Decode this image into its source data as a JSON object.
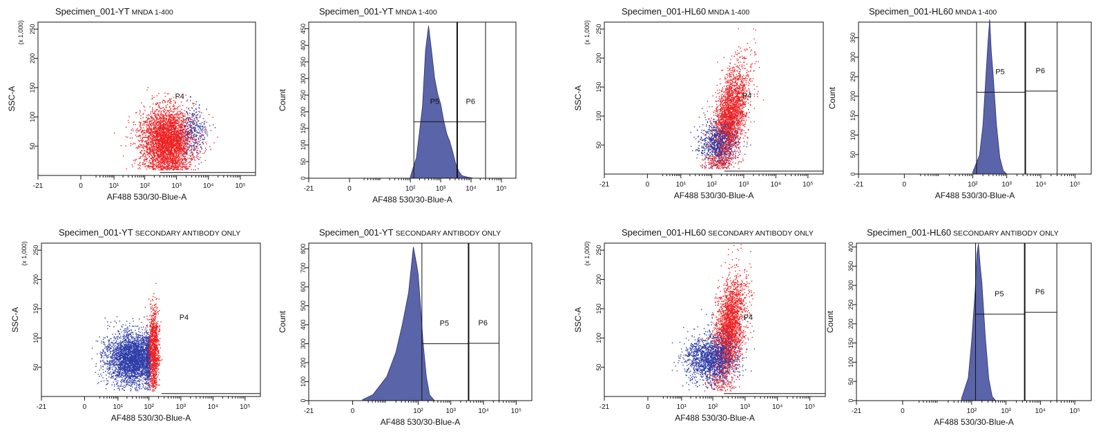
{
  "figure": {
    "colors": {
      "positive": "#ee2224",
      "negative": "#2e3ca8",
      "histogram_fill": "#5a64a8",
      "histogram_edge": "#2a2f7a"
    }
  },
  "chart_data": [
    {
      "type": "scatter",
      "title_main": "Specimen_001-YT",
      "title_sub": "MNDA 1-400",
      "xlabel": "AF488 530/30-Blue-A",
      "ylabel": "SSC-A",
      "y_multiplier": "(x 1,000)",
      "x_scale": "biexponential",
      "xlim": [
        -21,
        300000
      ],
      "ylim": [
        0,
        262
      ],
      "x_ticks": [
        "-21",
        "0",
        "10¹",
        "10²",
        "10³",
        "10⁴",
        "10⁵"
      ],
      "y_ticks": [
        "50",
        "100",
        "150",
        "200",
        "250"
      ],
      "gates": [
        {
          "name": "P4",
          "polygon": [
            [
              300,
              5
            ],
            [
              300000,
              5
            ],
            [
              300000,
              262
            ],
            [
              60,
              262
            ]
          ]
        }
      ],
      "populations": [
        {
          "name": "P4 (red)",
          "color": "#ee2224",
          "x_center": 500,
          "y_center": 60,
          "x_spread_decades": 0.42,
          "y_sd": 28,
          "events": 3800
        },
        {
          "name": "outside P4 (blue)",
          "color": "#2e3ca8",
          "x_center": 3500,
          "y_center": 75,
          "x_spread_decades": 0.2,
          "y_sd": 22,
          "events": 300
        }
      ]
    },
    {
      "type": "area",
      "title_main": "Specimen_001-YT",
      "title_sub": "MNDA 1-400",
      "xlabel": "AF488 530/30-Blue-A",
      "ylabel": "Count",
      "x_scale": "biexponential",
      "xlim": [
        -21,
        300000
      ],
      "ylim": [
        0,
        470
      ],
      "x_ticks": [
        "-21",
        "0",
        "10²",
        "10³",
        "10⁴",
        "10⁵"
      ],
      "y_ticks": [
        "0",
        "50",
        "100",
        "150",
        "200",
        "250",
        "300",
        "350",
        "400",
        "450"
      ],
      "histogram": {
        "log10_x": [
          2.0,
          2.2,
          2.4,
          2.5,
          2.6,
          2.7,
          2.8,
          2.9,
          3.0,
          3.1,
          3.2,
          3.3,
          3.4,
          3.5,
          3.6,
          3.7,
          3.9,
          4.1
        ],
        "count": [
          5,
          60,
          220,
          400,
          450,
          380,
          300,
          250,
          230,
          180,
          140,
          110,
          80,
          40,
          20,
          8,
          3,
          0
        ]
      },
      "gates": [
        {
          "name": "P5",
          "x_range": [
            130,
            3500
          ],
          "level": 170
        },
        {
          "name": "P6",
          "x_range": [
            3500,
            30000
          ],
          "level": 170
        }
      ]
    },
    {
      "type": "scatter",
      "title_main": "Specimen_001-HL60",
      "title_sub": "MNDA 1-400",
      "xlabel": "AF488 530/30-Blue-A",
      "ylabel": "SSC-A",
      "y_multiplier": "(x 1,000)",
      "x_scale": "biexponential",
      "xlim": [
        -21,
        300000
      ],
      "ylim": [
        0,
        262
      ],
      "x_ticks": [
        "-21",
        "0",
        "10¹",
        "10²",
        "10³",
        "10⁴",
        "10⁵"
      ],
      "y_ticks": [
        "50",
        "100",
        "150",
        "200",
        "250"
      ],
      "gates": [
        {
          "name": "P4",
          "polygon": [
            [
              250,
              5
            ],
            [
              300000,
              5
            ],
            [
              300000,
              262
            ],
            [
              700,
              262
            ]
          ]
        }
      ],
      "populations": [
        {
          "name": "P4 (red)",
          "color": "#ee2224",
          "x_center": 350,
          "y_center": 95,
          "x_spread_decades": 0.28,
          "y_sd": 38,
          "events": 3000,
          "correlated": true
        },
        {
          "name": "outside P4 (blue)",
          "color": "#2e3ca8",
          "x_center": 150,
          "y_center": 55,
          "x_spread_decades": 0.3,
          "y_sd": 18,
          "events": 700
        }
      ]
    },
    {
      "type": "area",
      "title_main": "Specimen_001-HL60",
      "title_sub": "MNDA 1-400",
      "xlabel": "AF488 530/30-Blue-A",
      "ylabel": "Count",
      "x_scale": "biexponential",
      "xlim": [
        -21,
        300000
      ],
      "ylim": [
        0,
        390
      ],
      "x_ticks": [
        "-21",
        "0",
        "10²",
        "10³",
        "10⁴",
        "10⁵"
      ],
      "y_ticks": [
        "0",
        "50",
        "100",
        "150",
        "200",
        "250",
        "300",
        "350"
      ],
      "histogram": {
        "log10_x": [
          2.0,
          2.2,
          2.3,
          2.4,
          2.45,
          2.5,
          2.55,
          2.6,
          2.7,
          2.8,
          2.9,
          3.0
        ],
        "count": [
          5,
          50,
          130,
          260,
          360,
          375,
          330,
          250,
          120,
          40,
          8,
          0
        ]
      },
      "gates": [
        {
          "name": "P5",
          "x_range": [
            130,
            3500
          ],
          "level": 210
        },
        {
          "name": "P6",
          "x_range": [
            3500,
            30000
          ],
          "level": 213
        }
      ]
    },
    {
      "type": "scatter",
      "title_main": "Specimen_001-YT",
      "title_sub": "SECONDARY ANTIBODY ONLY",
      "xlabel": "AF488 530/30-Blue-A",
      "ylabel": "SSC-A",
      "y_multiplier": "(x 1,000)",
      "x_scale": "biexponential",
      "xlim": [
        -21,
        300000
      ],
      "ylim": [
        0,
        262
      ],
      "x_ticks": [
        "-21",
        "0",
        "10¹",
        "10²",
        "10³",
        "10⁴",
        "10⁵"
      ],
      "y_ticks": [
        "50",
        "100",
        "150",
        "200",
        "250"
      ],
      "gates": [
        {
          "name": "P4",
          "polygon": [
            [
              250,
              5
            ],
            [
              300000,
              5
            ],
            [
              300000,
              262
            ],
            [
              1500,
              262
            ]
          ]
        }
      ],
      "populations": [
        {
          "name": "outside P4 (blue)",
          "color": "#2e3ca8",
          "x_center": 30,
          "y_center": 65,
          "x_spread_decades": 0.45,
          "y_sd": 22,
          "events": 3400,
          "x_max": 110
        },
        {
          "name": "P4 (red)",
          "color": "#ee2224",
          "x_center": 140,
          "y_center": 80,
          "x_spread_decades": 0.08,
          "y_sd": 35,
          "events": 1100
        }
      ]
    },
    {
      "type": "area",
      "title_main": "Specimen_001-YT",
      "title_sub": "SECONDARY ANTIBODY ONLY",
      "xlabel": "AF488 530/30-Blue-A",
      "ylabel": "Count",
      "x_scale": "biexponential",
      "xlim": [
        -21,
        300000
      ],
      "ylim": [
        0,
        830
      ],
      "x_ticks": [
        "-21",
        "0",
        "10²",
        "10³",
        "10⁴",
        "10⁵"
      ],
      "y_ticks": [
        "0",
        "100",
        "200",
        "300",
        "400",
        "500",
        "600",
        "700",
        "800"
      ],
      "histogram": {
        "log10_x": [
          0.0,
          0.5,
          1.0,
          1.3,
          1.5,
          1.7,
          1.85,
          1.95,
          2.0,
          2.05,
          2.15,
          2.25,
          2.35,
          2.5
        ],
        "count": [
          5,
          30,
          120,
          250,
          400,
          560,
          790,
          720,
          640,
          560,
          300,
          120,
          30,
          0
        ]
      },
      "gates": [
        {
          "name": "P5",
          "x_range": [
            130,
            3500
          ],
          "level": 300
        },
        {
          "name": "P6",
          "x_range": [
            3500,
            30000
          ],
          "level": 302
        }
      ]
    },
    {
      "type": "scatter",
      "title_main": "Specimen_001-HL60",
      "title_sub": "SECONDARY ANTIBODY ONLY",
      "xlabel": "AF488 530/30-Blue-A",
      "ylabel": "SSC-A",
      "y_multiplier": "(x 1,000)",
      "x_scale": "biexponential",
      "xlim": [
        -21,
        300000
      ],
      "ylim": [
        0,
        262
      ],
      "x_ticks": [
        "-21",
        "0",
        "10¹",
        "10²",
        "10³",
        "10⁴",
        "10⁵"
      ],
      "y_ticks": [
        "50",
        "100",
        "150",
        "200",
        "250"
      ],
      "gates": [
        {
          "name": "P4",
          "polygon": [
            [
              220,
              5
            ],
            [
              300000,
              5
            ],
            [
              300000,
              262
            ],
            [
              900,
              262
            ]
          ]
        }
      ],
      "populations": [
        {
          "name": "P4 (red)",
          "color": "#ee2224",
          "x_center": 300,
          "y_center": 110,
          "x_spread_decades": 0.25,
          "y_sd": 42,
          "events": 2800,
          "correlated": true
        },
        {
          "name": "outside P4 (blue)",
          "color": "#2e3ca8",
          "x_center": 80,
          "y_center": 65,
          "x_spread_decades": 0.4,
          "y_sd": 20,
          "events": 1600
        }
      ]
    },
    {
      "type": "area",
      "title_main": "Specimen_001-HL60",
      "title_sub": "SECONDARY ANTIBODY ONLY",
      "xlabel": "AF488 530/30-Blue-A",
      "ylabel": "Count",
      "x_scale": "biexponential",
      "xlim": [
        -21,
        300000
      ],
      "ylim": [
        0,
        410
      ],
      "x_ticks": [
        "-21",
        "0",
        "10²",
        "10³",
        "10⁴",
        "10⁵"
      ],
      "y_ticks": [
        "0",
        "50",
        "100",
        "150",
        "200",
        "250",
        "300",
        "350",
        "400"
      ],
      "histogram": {
        "log10_x": [
          1.7,
          1.9,
          2.0,
          2.1,
          2.15,
          2.2,
          2.25,
          2.3,
          2.4,
          2.5,
          2.6,
          2.7
        ],
        "count": [
          5,
          60,
          150,
          300,
          380,
          400,
          360,
          290,
          160,
          60,
          10,
          0
        ]
      },
      "gates": [
        {
          "name": "P5",
          "x_range": [
            130,
            3500
          ],
          "level": 225
        },
        {
          "name": "P6",
          "x_range": [
            3500,
            30000
          ],
          "level": 230
        }
      ]
    }
  ]
}
